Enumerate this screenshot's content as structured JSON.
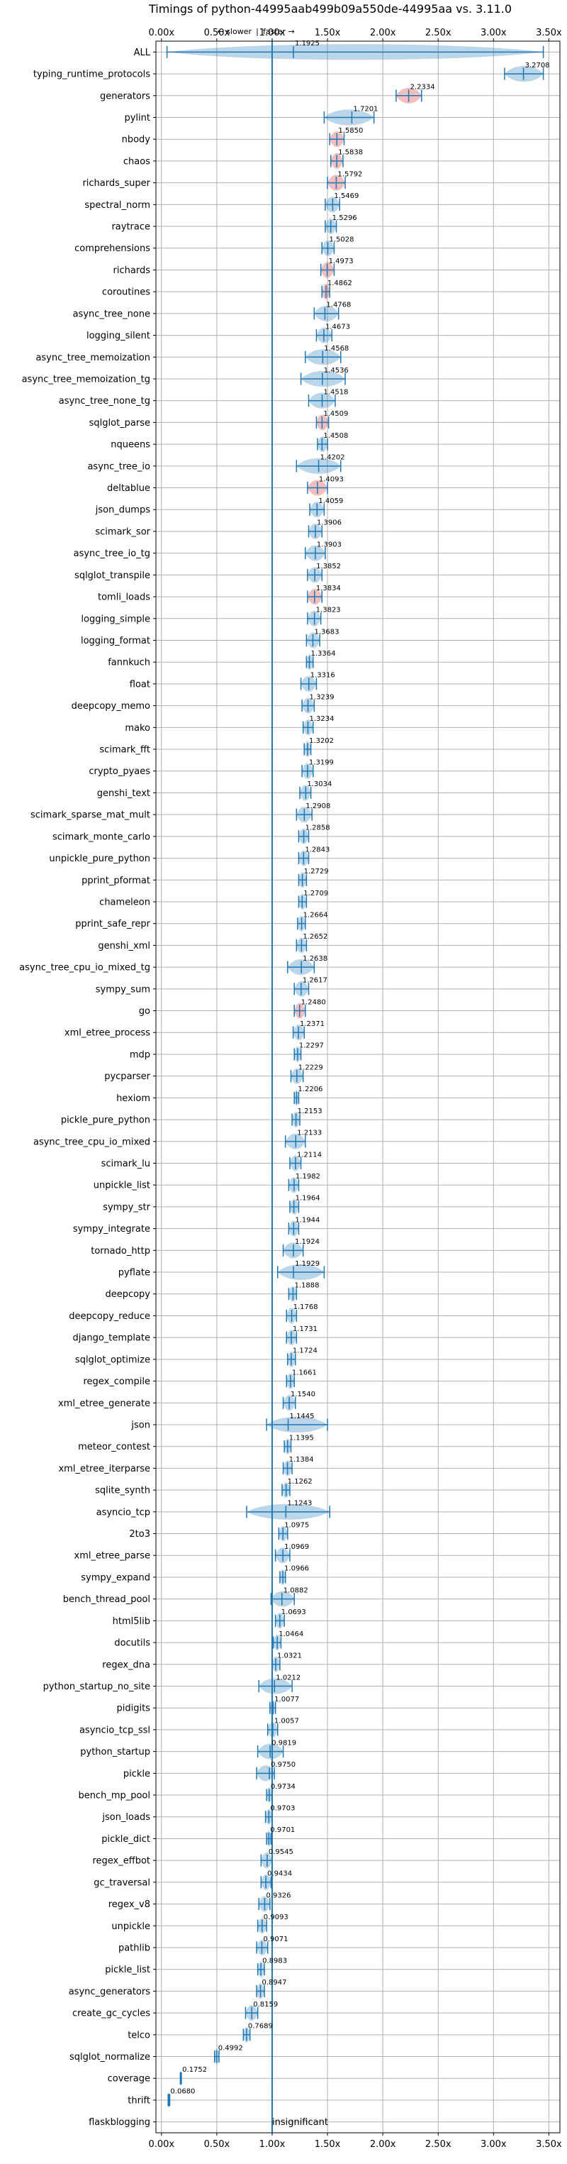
{
  "chart_data": {
    "type": "violin",
    "title": "Timings of python-44995aab499b09a550de-44995aa vs. 3.11.0",
    "top_note_left": "← slower",
    "top_note_sep": "|",
    "top_note_right": "faster →",
    "xlim": [
      -0.05,
      3.6
    ],
    "xticks": [
      0.0,
      0.5,
      1.0,
      1.5,
      2.0,
      2.5,
      3.0,
      3.5
    ],
    "xtick_labels": [
      "0.00x",
      "0.50x",
      "1.00x",
      "1.50x",
      "2.00x",
      "2.50x",
      "3.00x",
      "3.50x"
    ],
    "reference_x": 1.0,
    "grid": true,
    "insignificant_label": "insignificant",
    "colors": {
      "normal": "#1f77b4",
      "regressed": "#d62728",
      "grid": "#b0b0b0"
    },
    "benchmarks": [
      {
        "name": "ALL",
        "value": 1.1925,
        "label": "1.1925",
        "min": 0.05,
        "max": 3.45,
        "spread": 0.12,
        "red": false
      },
      {
        "name": "typing_runtime_protocols",
        "value": 3.2708,
        "label": "3.2708",
        "min": 3.1,
        "max": 3.45,
        "spread": 0.12,
        "red": false
      },
      {
        "name": "generators",
        "value": 2.2334,
        "label": "2.2334",
        "min": 2.12,
        "max": 2.35,
        "spread": 0.12,
        "red": true
      },
      {
        "name": "pylint",
        "value": 1.7201,
        "label": "1.7201",
        "min": 1.47,
        "max": 1.92,
        "spread": 0.12,
        "red": false
      },
      {
        "name": "nbody",
        "value": 1.585,
        "label": "1.5850",
        "min": 1.52,
        "max": 1.65,
        "spread": 0.12,
        "red": true
      },
      {
        "name": "chaos",
        "value": 1.5838,
        "label": "1.5838",
        "min": 1.53,
        "max": 1.64,
        "spread": 0.12,
        "red": true
      },
      {
        "name": "richards_super",
        "value": 1.5792,
        "label": "1.5792",
        "min": 1.5,
        "max": 1.66,
        "spread": 0.12,
        "red": true
      },
      {
        "name": "spectral_norm",
        "value": 1.5469,
        "label": "1.5469",
        "min": 1.48,
        "max": 1.61,
        "spread": 0.12,
        "red": false
      },
      {
        "name": "raytrace",
        "value": 1.5296,
        "label": "1.5296",
        "min": 1.48,
        "max": 1.58,
        "spread": 0.12,
        "red": false
      },
      {
        "name": "comprehensions",
        "value": 1.5028,
        "label": "1.5028",
        "min": 1.45,
        "max": 1.56,
        "spread": 0.12,
        "red": false
      },
      {
        "name": "richards",
        "value": 1.4973,
        "label": "1.4973",
        "min": 1.44,
        "max": 1.56,
        "spread": 0.12,
        "red": true
      },
      {
        "name": "coroutines",
        "value": 1.4862,
        "label": "1.4862",
        "min": 1.45,
        "max": 1.52,
        "spread": 0.12,
        "red": true
      },
      {
        "name": "async_tree_none",
        "value": 1.4768,
        "label": "1.4768",
        "min": 1.38,
        "max": 1.6,
        "spread": 0.12,
        "red": false
      },
      {
        "name": "logging_silent",
        "value": 1.4673,
        "label": "1.4673",
        "min": 1.4,
        "max": 1.54,
        "spread": 0.12,
        "red": false
      },
      {
        "name": "async_tree_memoization",
        "value": 1.4568,
        "label": "1.4568",
        "min": 1.3,
        "max": 1.62,
        "spread": 0.12,
        "red": false
      },
      {
        "name": "async_tree_memoization_tg",
        "value": 1.4536,
        "label": "1.4536",
        "min": 1.26,
        "max": 1.66,
        "spread": 0.12,
        "red": false
      },
      {
        "name": "async_tree_none_tg",
        "value": 1.4518,
        "label": "1.4518",
        "min": 1.33,
        "max": 1.57,
        "spread": 0.12,
        "red": false
      },
      {
        "name": "sqlglot_parse",
        "value": 1.4509,
        "label": "1.4509",
        "min": 1.4,
        "max": 1.51,
        "spread": 0.12,
        "red": true
      },
      {
        "name": "nqueens",
        "value": 1.4508,
        "label": "1.4508",
        "min": 1.41,
        "max": 1.5,
        "spread": 0.12,
        "red": false
      },
      {
        "name": "async_tree_io",
        "value": 1.4202,
        "label": "1.4202",
        "min": 1.22,
        "max": 1.62,
        "spread": 0.12,
        "red": false
      },
      {
        "name": "deltablue",
        "value": 1.4093,
        "label": "1.4093",
        "min": 1.32,
        "max": 1.5,
        "spread": 0.12,
        "red": true
      },
      {
        "name": "json_dumps",
        "value": 1.4059,
        "label": "1.4059",
        "min": 1.34,
        "max": 1.47,
        "spread": 0.12,
        "red": false
      },
      {
        "name": "scimark_sor",
        "value": 1.3906,
        "label": "1.3906",
        "min": 1.33,
        "max": 1.45,
        "spread": 0.12,
        "red": false
      },
      {
        "name": "async_tree_io_tg",
        "value": 1.3903,
        "label": "1.3903",
        "min": 1.3,
        "max": 1.48,
        "spread": 0.12,
        "red": false
      },
      {
        "name": "sqlglot_transpile",
        "value": 1.3852,
        "label": "1.3852",
        "min": 1.32,
        "max": 1.45,
        "spread": 0.12,
        "red": false
      },
      {
        "name": "tomli_loads",
        "value": 1.3834,
        "label": "1.3834",
        "min": 1.32,
        "max": 1.45,
        "spread": 0.12,
        "red": true
      },
      {
        "name": "logging_simple",
        "value": 1.3823,
        "label": "1.3823",
        "min": 1.32,
        "max": 1.44,
        "spread": 0.12,
        "red": false
      },
      {
        "name": "logging_format",
        "value": 1.3683,
        "label": "1.3683",
        "min": 1.31,
        "max": 1.43,
        "spread": 0.12,
        "red": false
      },
      {
        "name": "fannkuch",
        "value": 1.3364,
        "label": "1.3364",
        "min": 1.31,
        "max": 1.37,
        "spread": 0.12,
        "red": false
      },
      {
        "name": "float",
        "value": 1.3316,
        "label": "1.3316",
        "min": 1.26,
        "max": 1.4,
        "spread": 0.12,
        "red": false
      },
      {
        "name": "deepcopy_memo",
        "value": 1.3239,
        "label": "1.3239",
        "min": 1.27,
        "max": 1.38,
        "spread": 0.12,
        "red": false
      },
      {
        "name": "mako",
        "value": 1.3234,
        "label": "1.3234",
        "min": 1.28,
        "max": 1.37,
        "spread": 0.12,
        "red": false
      },
      {
        "name": "scimark_fft",
        "value": 1.3202,
        "label": "1.3202",
        "min": 1.29,
        "max": 1.35,
        "spread": 0.12,
        "red": false
      },
      {
        "name": "crypto_pyaes",
        "value": 1.3199,
        "label": "1.3199",
        "min": 1.27,
        "max": 1.37,
        "spread": 0.12,
        "red": false
      },
      {
        "name": "genshi_text",
        "value": 1.3034,
        "label": "1.3034",
        "min": 1.25,
        "max": 1.35,
        "spread": 0.12,
        "red": false
      },
      {
        "name": "scimark_sparse_mat_mult",
        "value": 1.2908,
        "label": "1.2908",
        "min": 1.22,
        "max": 1.36,
        "spread": 0.12,
        "red": false
      },
      {
        "name": "scimark_monte_carlo",
        "value": 1.2858,
        "label": "1.2858",
        "min": 1.24,
        "max": 1.33,
        "spread": 0.12,
        "red": false
      },
      {
        "name": "unpickle_pure_python",
        "value": 1.2843,
        "label": "1.2843",
        "min": 1.24,
        "max": 1.33,
        "spread": 0.12,
        "red": false
      },
      {
        "name": "pprint_pformat",
        "value": 1.2729,
        "label": "1.2729",
        "min": 1.24,
        "max": 1.31,
        "spread": 0.12,
        "red": false
      },
      {
        "name": "chameleon",
        "value": 1.2709,
        "label": "1.2709",
        "min": 1.24,
        "max": 1.31,
        "spread": 0.12,
        "red": false
      },
      {
        "name": "pprint_safe_repr",
        "value": 1.2664,
        "label": "1.2664",
        "min": 1.23,
        "max": 1.3,
        "spread": 0.12,
        "red": false
      },
      {
        "name": "genshi_xml",
        "value": 1.2652,
        "label": "1.2652",
        "min": 1.22,
        "max": 1.31,
        "spread": 0.12,
        "red": false
      },
      {
        "name": "async_tree_cpu_io_mixed_tg",
        "value": 1.2638,
        "label": "1.2638",
        "min": 1.14,
        "max": 1.38,
        "spread": 0.12,
        "red": false
      },
      {
        "name": "sympy_sum",
        "value": 1.2617,
        "label": "1.2617",
        "min": 1.2,
        "max": 1.33,
        "spread": 0.12,
        "red": false
      },
      {
        "name": "go",
        "value": 1.248,
        "label": "1.2480",
        "min": 1.2,
        "max": 1.3,
        "spread": 0.12,
        "red": true
      },
      {
        "name": "xml_etree_process",
        "value": 1.2371,
        "label": "1.2371",
        "min": 1.19,
        "max": 1.29,
        "spread": 0.12,
        "red": false
      },
      {
        "name": "mdp",
        "value": 1.2297,
        "label": "1.2297",
        "min": 1.2,
        "max": 1.26,
        "spread": 0.12,
        "red": false
      },
      {
        "name": "pycparser",
        "value": 1.2229,
        "label": "1.2229",
        "min": 1.17,
        "max": 1.28,
        "spread": 0.12,
        "red": false
      },
      {
        "name": "hexiom",
        "value": 1.2206,
        "label": "1.2206",
        "min": 1.2,
        "max": 1.24,
        "spread": 0.12,
        "red": false
      },
      {
        "name": "pickle_pure_python",
        "value": 1.2153,
        "label": "1.2153",
        "min": 1.18,
        "max": 1.25,
        "spread": 0.12,
        "red": false
      },
      {
        "name": "async_tree_cpu_io_mixed",
        "value": 1.2133,
        "label": "1.2133",
        "min": 1.12,
        "max": 1.3,
        "spread": 0.12,
        "red": false
      },
      {
        "name": "scimark_lu",
        "value": 1.2114,
        "label": "1.2114",
        "min": 1.16,
        "max": 1.26,
        "spread": 0.12,
        "red": false
      },
      {
        "name": "unpickle_list",
        "value": 1.1982,
        "label": "1.1982",
        "min": 1.15,
        "max": 1.24,
        "spread": 0.12,
        "red": false
      },
      {
        "name": "sympy_str",
        "value": 1.1964,
        "label": "1.1964",
        "min": 1.16,
        "max": 1.24,
        "spread": 0.12,
        "red": false
      },
      {
        "name": "sympy_integrate",
        "value": 1.1944,
        "label": "1.1944",
        "min": 1.15,
        "max": 1.24,
        "spread": 0.12,
        "red": false
      },
      {
        "name": "tornado_http",
        "value": 1.1924,
        "label": "1.1924",
        "min": 1.1,
        "max": 1.28,
        "spread": 0.12,
        "red": false
      },
      {
        "name": "pyflate",
        "value": 1.1929,
        "label": "1.1929",
        "min": 1.05,
        "max": 1.47,
        "spread": 0.12,
        "red": false
      },
      {
        "name": "deepcopy",
        "value": 1.1888,
        "label": "1.1888",
        "min": 1.15,
        "max": 1.22,
        "spread": 0.12,
        "red": false
      },
      {
        "name": "deepcopy_reduce",
        "value": 1.1768,
        "label": "1.1768",
        "min": 1.13,
        "max": 1.22,
        "spread": 0.12,
        "red": false
      },
      {
        "name": "django_template",
        "value": 1.1731,
        "label": "1.1731",
        "min": 1.13,
        "max": 1.22,
        "spread": 0.12,
        "red": false
      },
      {
        "name": "sqlglot_optimize",
        "value": 1.1724,
        "label": "1.1724",
        "min": 1.14,
        "max": 1.21,
        "spread": 0.12,
        "red": false
      },
      {
        "name": "regex_compile",
        "value": 1.1661,
        "label": "1.1661",
        "min": 1.13,
        "max": 1.2,
        "spread": 0.12,
        "red": false
      },
      {
        "name": "xml_etree_generate",
        "value": 1.154,
        "label": "1.1540",
        "min": 1.1,
        "max": 1.21,
        "spread": 0.12,
        "red": false
      },
      {
        "name": "json",
        "value": 1.1445,
        "label": "1.1445",
        "min": 0.95,
        "max": 1.5,
        "spread": 0.12,
        "red": false
      },
      {
        "name": "meteor_contest",
        "value": 1.1395,
        "label": "1.1395",
        "min": 1.11,
        "max": 1.17,
        "spread": 0.12,
        "red": false
      },
      {
        "name": "xml_etree_iterparse",
        "value": 1.1384,
        "label": "1.1384",
        "min": 1.1,
        "max": 1.18,
        "spread": 0.12,
        "red": false
      },
      {
        "name": "sqlite_synth",
        "value": 1.1262,
        "label": "1.1262",
        "min": 1.09,
        "max": 1.16,
        "spread": 0.12,
        "red": false
      },
      {
        "name": "asyncio_tcp",
        "value": 1.1243,
        "label": "1.1243",
        "min": 0.77,
        "max": 1.52,
        "spread": 0.12,
        "red": false
      },
      {
        "name": "2to3",
        "value": 1.0975,
        "label": "1.0975",
        "min": 1.06,
        "max": 1.14,
        "spread": 0.12,
        "red": false
      },
      {
        "name": "xml_etree_parse",
        "value": 1.0969,
        "label": "1.0969",
        "min": 1.03,
        "max": 1.16,
        "spread": 0.12,
        "red": false
      },
      {
        "name": "sympy_expand",
        "value": 1.0966,
        "label": "1.0966",
        "min": 1.07,
        "max": 1.12,
        "spread": 0.12,
        "red": false
      },
      {
        "name": "bench_thread_pool",
        "value": 1.0882,
        "label": "1.0882",
        "min": 0.99,
        "max": 1.2,
        "spread": 0.12,
        "red": false
      },
      {
        "name": "html5lib",
        "value": 1.0693,
        "label": "1.0693",
        "min": 1.03,
        "max": 1.11,
        "spread": 0.12,
        "red": false
      },
      {
        "name": "docutils",
        "value": 1.0464,
        "label": "1.0464",
        "min": 1.01,
        "max": 1.08,
        "spread": 0.12,
        "red": false
      },
      {
        "name": "regex_dna",
        "value": 1.0321,
        "label": "1.0321",
        "min": 1.0,
        "max": 1.07,
        "spread": 0.12,
        "red": false
      },
      {
        "name": "python_startup_no_site",
        "value": 1.0212,
        "label": "1.0212",
        "min": 0.88,
        "max": 1.18,
        "spread": 0.12,
        "red": false
      },
      {
        "name": "pidigits",
        "value": 1.0077,
        "label": "1.0077",
        "min": 0.98,
        "max": 1.03,
        "spread": 0.12,
        "red": false
      },
      {
        "name": "asyncio_tcp_ssl",
        "value": 1.0057,
        "label": "1.0057",
        "min": 0.96,
        "max": 1.05,
        "spread": 0.12,
        "red": false
      },
      {
        "name": "python_startup",
        "value": 0.9819,
        "label": "0.9819",
        "min": 0.87,
        "max": 1.1,
        "spread": 0.12,
        "red": false
      },
      {
        "name": "pickle",
        "value": 0.975,
        "label": "0.9750",
        "min": 0.86,
        "max": 1.02,
        "spread": 0.12,
        "red": false
      },
      {
        "name": "bench_mp_pool",
        "value": 0.9734,
        "label": "0.9734",
        "min": 0.95,
        "max": 1.0,
        "spread": 0.12,
        "red": false
      },
      {
        "name": "json_loads",
        "value": 0.9703,
        "label": "0.9703",
        "min": 0.94,
        "max": 1.0,
        "spread": 0.12,
        "red": false
      },
      {
        "name": "pickle_dict",
        "value": 0.9701,
        "label": "0.9701",
        "min": 0.95,
        "max": 0.99,
        "spread": 0.12,
        "red": false
      },
      {
        "name": "regex_effbot",
        "value": 0.9545,
        "label": "0.9545",
        "min": 0.9,
        "max": 1.0,
        "spread": 0.12,
        "red": false
      },
      {
        "name": "gc_traversal",
        "value": 0.9434,
        "label": "0.9434",
        "min": 0.9,
        "max": 0.99,
        "spread": 0.12,
        "red": false
      },
      {
        "name": "regex_v8",
        "value": 0.9326,
        "label": "0.9326",
        "min": 0.88,
        "max": 0.98,
        "spread": 0.12,
        "red": false
      },
      {
        "name": "unpickle",
        "value": 0.9093,
        "label": "0.9093",
        "min": 0.87,
        "max": 0.95,
        "spread": 0.12,
        "red": false
      },
      {
        "name": "pathlib",
        "value": 0.9071,
        "label": "0.9071",
        "min": 0.86,
        "max": 0.96,
        "spread": 0.12,
        "red": false
      },
      {
        "name": "pickle_list",
        "value": 0.8983,
        "label": "0.8983",
        "min": 0.87,
        "max": 0.93,
        "spread": 0.12,
        "red": false
      },
      {
        "name": "async_generators",
        "value": 0.8947,
        "label": "0.8947",
        "min": 0.86,
        "max": 0.93,
        "spread": 0.12,
        "red": false
      },
      {
        "name": "create_gc_cycles",
        "value": 0.8159,
        "label": "0.8159",
        "min": 0.76,
        "max": 0.87,
        "spread": 0.12,
        "red": false
      },
      {
        "name": "telco",
        "value": 0.7689,
        "label": "0.7689",
        "min": 0.74,
        "max": 0.8,
        "spread": 0.12,
        "red": false
      },
      {
        "name": "sqlglot_normalize",
        "value": 0.4992,
        "label": "0.4992",
        "min": 0.48,
        "max": 0.52,
        "spread": 0.12,
        "red": false
      },
      {
        "name": "coverage",
        "value": 0.1752,
        "label": "0.1752",
        "min": 0.17,
        "max": 0.18,
        "spread": 0.12,
        "red": false
      },
      {
        "name": "thrift",
        "value": 0.068,
        "label": "0.0680",
        "min": 0.06,
        "max": 0.075,
        "spread": 0.12,
        "red": false
      },
      {
        "name": "flaskblogging",
        "value": null,
        "label": "",
        "min": null,
        "max": null,
        "spread": 0,
        "red": false,
        "insignificant": true
      }
    ]
  }
}
